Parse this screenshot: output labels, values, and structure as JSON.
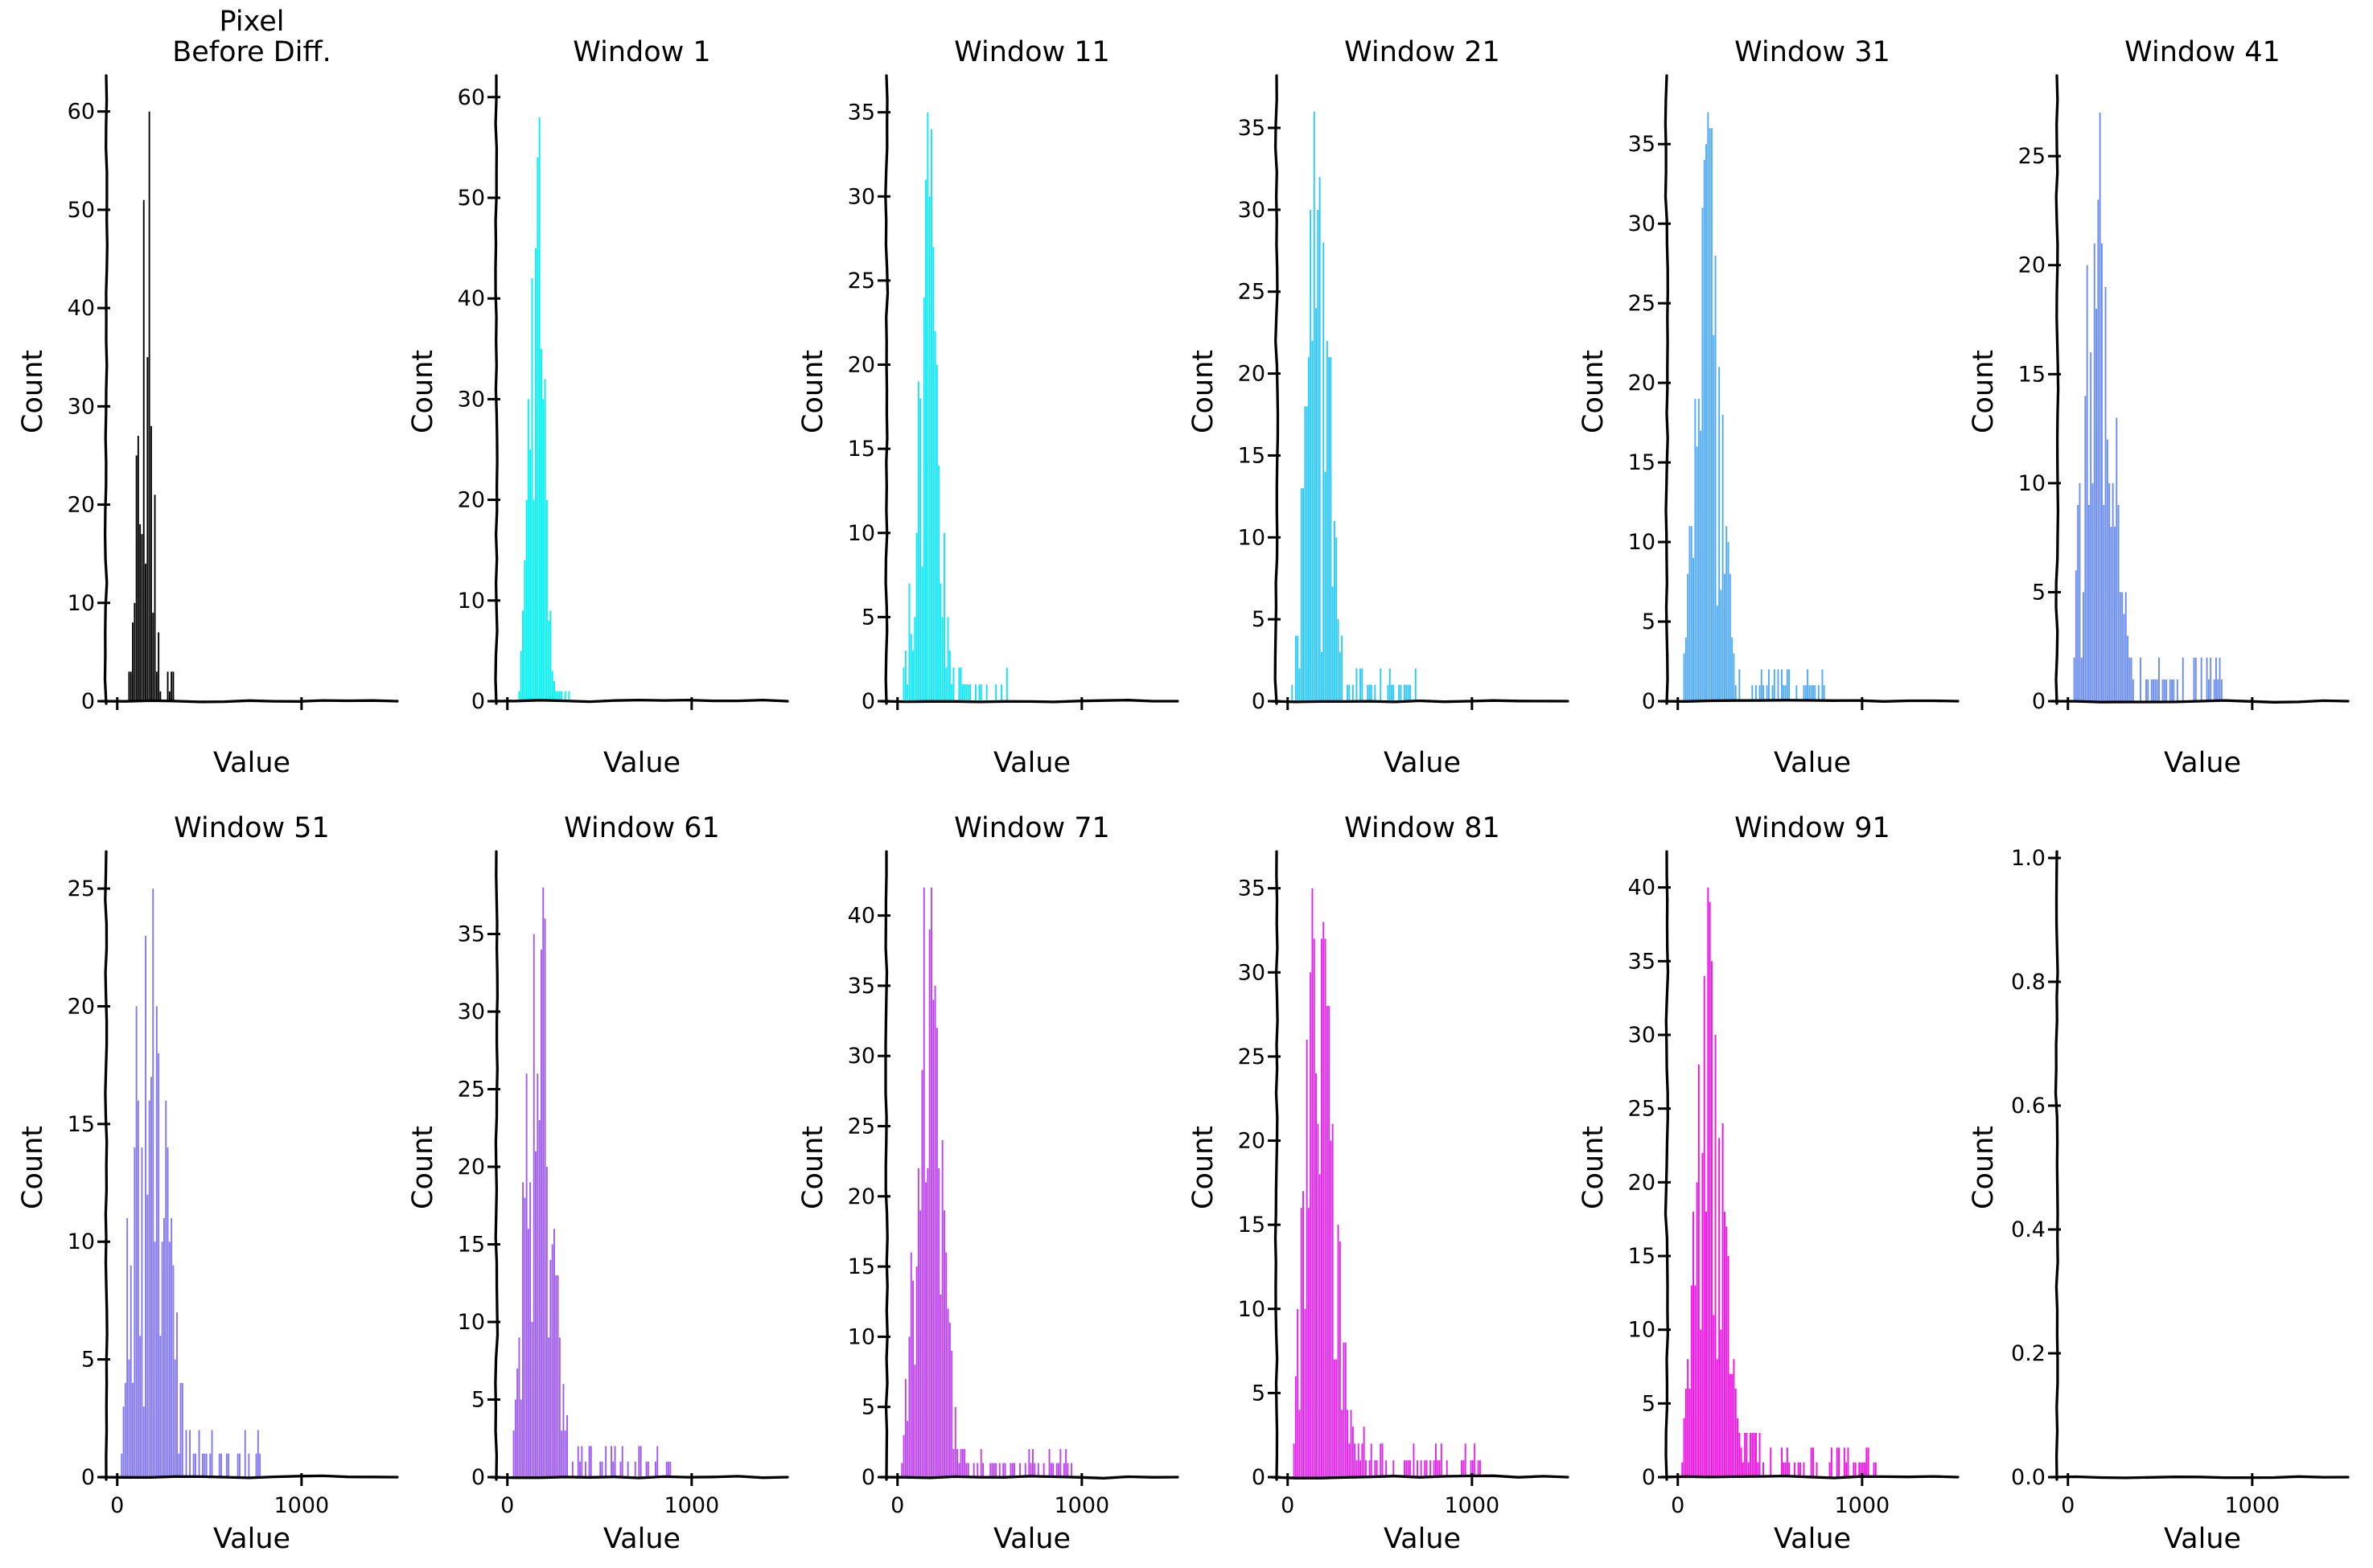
{
  "figure": {
    "background": "#ffffff",
    "rows": 2,
    "cols": 6,
    "xlabel": "Value",
    "ylabel": "Count"
  },
  "chart_data": [
    {
      "id": "pixel-before-diff",
      "type": "histogram",
      "title": "Pixel\nBefore Diff.",
      "title_lines": [
        "Pixel",
        "Before Diff."
      ],
      "xlabel": "Value",
      "ylabel": "Count",
      "color": "#000000",
      "ylim": [
        0,
        63
      ],
      "yticks": [
        0,
        10,
        20,
        30,
        40,
        50,
        60
      ],
      "ytick_labels": [
        "0",
        "10",
        "20",
        "30",
        "40",
        "50",
        "60"
      ],
      "xlim": [
        -60,
        1520
      ],
      "xticks": [
        0,
        1000
      ],
      "xtick_labels": [
        "",
        ""
      ],
      "peak_count": 60,
      "peak_x": 155,
      "sigma": 33,
      "tail_amp": 2.2,
      "tail_scale": 90,
      "tail_end": 420,
      "seed": 101
    },
    {
      "id": "window-1",
      "type": "histogram",
      "title": "Window 1",
      "title_lines": [
        "Window 1"
      ],
      "xlabel": "Value",
      "ylabel": "Count",
      "color": "#00F2F2",
      "ylim": [
        0,
        61.5
      ],
      "yticks": [
        0,
        10,
        20,
        30,
        40,
        50,
        60
      ],
      "ytick_labels": [
        "0",
        "10",
        "20",
        "30",
        "40",
        "50",
        "60"
      ],
      "xlim": [
        -60,
        1520
      ],
      "xticks": [
        0,
        1000
      ],
      "xtick_labels": [
        "",
        ""
      ],
      "peak_count": 58,
      "peak_x": 160,
      "sigma": 38,
      "tail_amp": 2.5,
      "tail_scale": 100,
      "tail_end": 460,
      "seed": 102
    },
    {
      "id": "window-11",
      "type": "histogram",
      "title": "Window 11",
      "title_lines": [
        "Window 11"
      ],
      "xlabel": "Value",
      "ylabel": "Count",
      "color": "#0FE5FC",
      "ylim": [
        0,
        36.8
      ],
      "yticks": [
        0,
        5,
        10,
        15,
        20,
        25,
        30,
        35
      ],
      "ytick_labels": [
        "0",
        "5",
        "10",
        "15",
        "20",
        "25",
        "30",
        "35"
      ],
      "xlim": [
        -60,
        1520
      ],
      "xticks": [
        0,
        1000
      ],
      "xtick_labels": [
        "",
        ""
      ],
      "peak_count": 35,
      "peak_x": 165,
      "sigma": 55,
      "tail_amp": 4,
      "tail_scale": 190,
      "tail_end": 660,
      "seed": 103
    },
    {
      "id": "window-21",
      "type": "histogram",
      "title": "Window 21",
      "title_lines": [
        "Window 21"
      ],
      "xlabel": "Value",
      "ylabel": "Count",
      "color": "#2BC9FB",
      "ylim": [
        0,
        37.8
      ],
      "yticks": [
        0,
        5,
        10,
        15,
        20,
        25,
        30,
        35
      ],
      "ytick_labels": [
        "0",
        "5",
        "10",
        "15",
        "20",
        "25",
        "30",
        "35"
      ],
      "xlim": [
        -60,
        1520
      ],
      "xticks": [
        0,
        1000
      ],
      "xtick_labels": [
        "",
        ""
      ],
      "peak_count": 36,
      "peak_x": 165,
      "sigma": 62,
      "tail_amp": 4.5,
      "tail_scale": 230,
      "tail_end": 880,
      "seed": 104
    },
    {
      "id": "window-31",
      "type": "histogram",
      "title": "Window 31",
      "title_lines": [
        "Window 31"
      ],
      "xlabel": "Value",
      "ylabel": "Count",
      "color": "#4FABF8",
      "ylim": [
        0,
        38.9
      ],
      "yticks": [
        0,
        5,
        10,
        15,
        20,
        25,
        30,
        35
      ],
      "ytick_labels": [
        "0",
        "5",
        "10",
        "15",
        "20",
        "25",
        "30",
        "35"
      ],
      "xlim": [
        -60,
        1520
      ],
      "xticks": [
        0,
        1000
      ],
      "xtick_labels": [
        "",
        ""
      ],
      "peak_count": 37,
      "peak_x": 170,
      "sigma": 68,
      "tail_amp": 5,
      "tail_scale": 250,
      "tail_end": 1000,
      "seed": 105
    },
    {
      "id": "window-41",
      "type": "histogram",
      "title": "Window 41",
      "title_lines": [
        "Window 41"
      ],
      "xlabel": "Value",
      "ylabel": "Count",
      "color": "#6B8DF2",
      "ylim": [
        0,
        28.4
      ],
      "yticks": [
        0,
        5,
        10,
        15,
        20,
        25
      ],
      "ytick_labels": [
        "0",
        "5",
        "10",
        "15",
        "20",
        "25"
      ],
      "xlim": [
        -60,
        1520
      ],
      "xticks": [
        0,
        1000
      ],
      "xtick_labels": [
        "",
        ""
      ],
      "peak_count": 27,
      "peak_x": 170,
      "sigma": 80,
      "tail_amp": 5,
      "tail_scale": 270,
      "tail_end": 1080,
      "seed": 106
    },
    {
      "id": "window-51",
      "type": "histogram",
      "title": "Window 51",
      "title_lines": [
        "Window 51"
      ],
      "xlabel": "Value",
      "ylabel": "Count",
      "color": "#8478EF",
      "ylim": [
        0,
        26.3
      ],
      "yticks": [
        0,
        5,
        10,
        15,
        20,
        25
      ],
      "ytick_labels": [
        "0",
        "5",
        "10",
        "15",
        "20",
        "25"
      ],
      "xlim": [
        -60,
        1520
      ],
      "xticks": [
        0,
        1000
      ],
      "xtick_labels": [
        "0",
        "1000"
      ],
      "peak_count": 25,
      "peak_x": 175,
      "sigma": 90,
      "tail_amp": 5.5,
      "tail_scale": 230,
      "tail_end": 1030,
      "seed": 107
    },
    {
      "id": "window-61",
      "type": "histogram",
      "title": "Window 61",
      "title_lines": [
        "Window 61"
      ],
      "xlabel": "Value",
      "ylabel": "Count",
      "color": "#9D5BF1",
      "ylim": [
        0,
        39.9
      ],
      "yticks": [
        0,
        5,
        10,
        15,
        20,
        25,
        30,
        35
      ],
      "ytick_labels": [
        "0",
        "5",
        "10",
        "15",
        "20",
        "25",
        "30",
        "35"
      ],
      "xlim": [
        -60,
        1520
      ],
      "xticks": [
        0,
        1000
      ],
      "xtick_labels": [
        "0",
        "1000"
      ],
      "peak_count": 38,
      "peak_x": 170,
      "sigma": 72,
      "tail_amp": 5.5,
      "tail_scale": 280,
      "tail_end": 1140,
      "seed": 108
    },
    {
      "id": "window-71",
      "type": "histogram",
      "title": "Window 71",
      "title_lines": [
        "Window 71"
      ],
      "xlabel": "Value",
      "ylabel": "Count",
      "color": "#BC41F0",
      "ylim": [
        0,
        44.1
      ],
      "yticks": [
        0,
        5,
        10,
        15,
        20,
        25,
        30,
        35,
        40
      ],
      "ytick_labels": [
        "0",
        "5",
        "10",
        "15",
        "20",
        "25",
        "30",
        "35",
        "40"
      ],
      "xlim": [
        -60,
        1520
      ],
      "xticks": [
        0,
        1000
      ],
      "xtick_labels": [
        "0",
        "1000"
      ],
      "peak_count": 42,
      "peak_x": 170,
      "sigma": 70,
      "tail_amp": 6,
      "tail_scale": 290,
      "tail_end": 1200,
      "seed": 109
    },
    {
      "id": "window-81",
      "type": "histogram",
      "title": "Window 81",
      "title_lines": [
        "Window 81"
      ],
      "xlabel": "Value",
      "ylabel": "Count",
      "color": "#DD25EE",
      "ylim": [
        0,
        36.8
      ],
      "yticks": [
        0,
        5,
        10,
        15,
        20,
        25,
        30,
        35
      ],
      "ytick_labels": [
        "0",
        "5",
        "10",
        "15",
        "20",
        "25",
        "30",
        "35"
      ],
      "xlim": [
        -60,
        1520
      ],
      "xticks": [
        0,
        1000
      ],
      "xtick_labels": [
        "0",
        "1000"
      ],
      "peak_count": 35,
      "peak_x": 175,
      "sigma": 78,
      "tail_amp": 6.5,
      "tail_scale": 320,
      "tail_end": 1330,
      "seed": 110
    },
    {
      "id": "window-91",
      "type": "histogram",
      "title": "Window 91",
      "title_lines": [
        "Window 91"
      ],
      "xlabel": "Value",
      "ylabel": "Count",
      "color": "#F311E1",
      "ylim": [
        0,
        42
      ],
      "yticks": [
        0,
        5,
        10,
        15,
        20,
        25,
        30,
        35,
        40
      ],
      "ytick_labels": [
        "0",
        "5",
        "10",
        "15",
        "20",
        "25",
        "30",
        "35",
        "40"
      ],
      "xlim": [
        -60,
        1520
      ],
      "xticks": [
        0,
        1000
      ],
      "xtick_labels": [
        "0",
        "1000"
      ],
      "peak_count": 40,
      "peak_x": 175,
      "sigma": 76,
      "tail_amp": 7,
      "tail_scale": 320,
      "tail_end": 1370,
      "seed": 111
    },
    {
      "id": "empty-axes",
      "type": "histogram",
      "title": "",
      "title_lines": [],
      "xlabel": "Value",
      "ylabel": "Count",
      "color": "#000000",
      "ylim": [
        0,
        1
      ],
      "yticks": [
        0,
        0.2,
        0.4,
        0.6,
        0.8,
        1.0
      ],
      "ytick_labels": [
        "0.0",
        "0.2",
        "0.4",
        "0.6",
        "0.8",
        "1.0"
      ],
      "xlim": [
        -60,
        1520
      ],
      "xticks": [
        0,
        1000
      ],
      "xtick_labels": [
        "0",
        "1000"
      ],
      "peak_count": 0,
      "peak_x": 0,
      "sigma": 1,
      "tail_amp": 0,
      "tail_scale": 1,
      "tail_end": 0,
      "seed": 112
    }
  ]
}
